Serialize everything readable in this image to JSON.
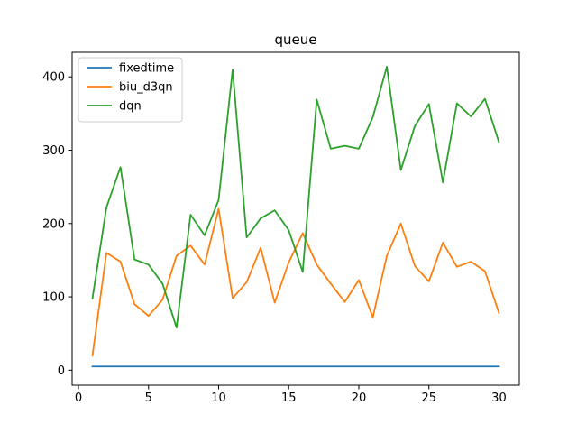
{
  "chart_data": {
    "type": "line",
    "title": "queue",
    "xlabel": "",
    "ylabel": "",
    "xlim": [
      -0.45,
      31.45
    ],
    "ylim": [
      -20.5,
      433.5
    ],
    "xticks": [
      0,
      5,
      10,
      15,
      20,
      25,
      30
    ],
    "yticks": [
      0,
      100,
      200,
      300,
      400
    ],
    "grid": false,
    "legend_position": "top-left",
    "x": [
      1,
      2,
      3,
      4,
      5,
      6,
      7,
      8,
      9,
      10,
      11,
      12,
      13,
      14,
      15,
      16,
      17,
      18,
      19,
      20,
      21,
      22,
      23,
      24,
      25,
      26,
      27,
      28,
      29,
      30
    ],
    "series": [
      {
        "name": "fixedtime",
        "color": "#1f77b4",
        "values": [
          5,
          5,
          5,
          5,
          5,
          5,
          5,
          5,
          5,
          5,
          5,
          5,
          5,
          5,
          5,
          5,
          5,
          5,
          5,
          5,
          5,
          5,
          5,
          5,
          5,
          5,
          5,
          5,
          5,
          5
        ]
      },
      {
        "name": "biu_d3qn",
        "color": "#ff7f0e",
        "values": [
          20,
          160,
          148,
          90,
          74,
          96,
          156,
          170,
          144,
          220,
          98,
          120,
          167,
          92,
          147,
          187,
          144,
          118,
          93,
          123,
          72,
          156,
          200,
          142,
          121,
          174,
          141,
          148,
          135,
          78
        ]
      },
      {
        "name": "dqn",
        "color": "#2ca02c",
        "values": [
          98,
          222,
          277,
          151,
          144,
          118,
          58,
          212,
          184,
          232,
          410,
          181,
          207,
          218,
          191,
          134,
          369,
          302,
          306,
          302,
          345,
          414,
          273,
          333,
          363,
          256,
          364,
          346,
          370,
          311
        ]
      }
    ]
  }
}
